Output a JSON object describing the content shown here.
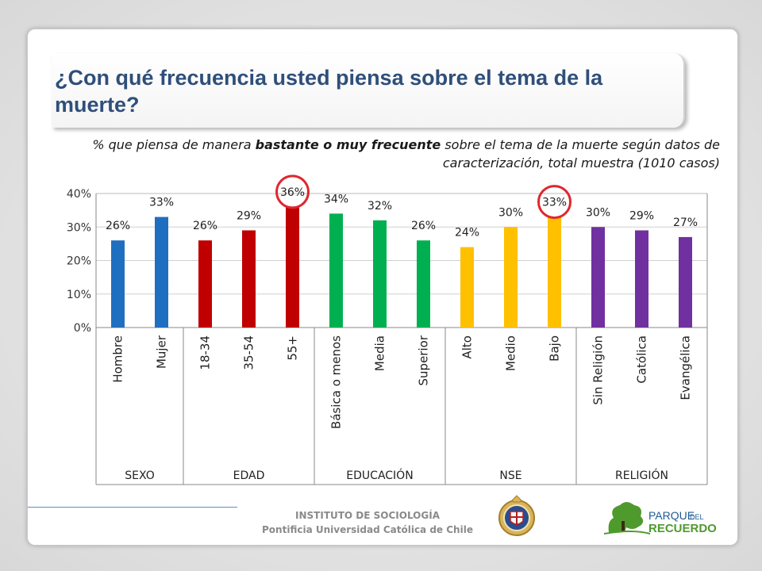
{
  "title": "¿Con qué frecuencia usted piensa sobre el tema de la muerte?",
  "subtitle": {
    "part1": "% que piensa de manera ",
    "emphasis": "bastante o muy frecuente",
    "part2": " sobre el tema de la muerte según datos de caracterización, total muestra (1010 casos)"
  },
  "chart_data": {
    "type": "bar",
    "ylim": [
      0,
      40
    ],
    "yticks": [
      "0%",
      "10%",
      "20%",
      "30%",
      "40%"
    ],
    "grid": true,
    "categories": [
      "Hombre",
      "Mujer",
      "18-34",
      "35-54",
      "55+",
      "Básica o menos",
      "Media",
      "Superior",
      "Alto",
      "Medio",
      "Bajo",
      "Sin Religión",
      "Católica",
      "Evangélica"
    ],
    "values": [
      26,
      33,
      26,
      29,
      36,
      34,
      32,
      26,
      24,
      30,
      33,
      30,
      29,
      27
    ],
    "value_labels": [
      "26%",
      "33%",
      "26%",
      "29%",
      "36%",
      "34%",
      "32%",
      "26%",
      "24%",
      "30%",
      "33%",
      "30%",
      "29%",
      "27%"
    ],
    "groups": [
      {
        "name": "SEXO",
        "count": 2,
        "color": "#1f6fc0"
      },
      {
        "name": "EDAD",
        "count": 3,
        "color": "#c00000"
      },
      {
        "name": "EDUCACIÓN",
        "count": 3,
        "color": "#00b050"
      },
      {
        "name": "NSE",
        "count": 3,
        "color": "#ffc000"
      },
      {
        "name": "RELIGIÓN",
        "count": 3,
        "color": "#7030a0"
      }
    ],
    "highlighted": [
      "55+",
      "Bajo"
    ],
    "highlight_color": "#e0262f"
  },
  "footer": {
    "institute": "INSTITUTO DE SOCIOLOGÍA",
    "university": "Pontificia Universidad Católica de Chile",
    "logo_text_1": "PARQUE",
    "logo_text_2": "DEL",
    "logo_text_3": "RECUERDO"
  },
  "colors": {
    "title": "#2f4f7a",
    "logo_green": "#4f9a2d",
    "logo_blue": "#1f5a94"
  }
}
